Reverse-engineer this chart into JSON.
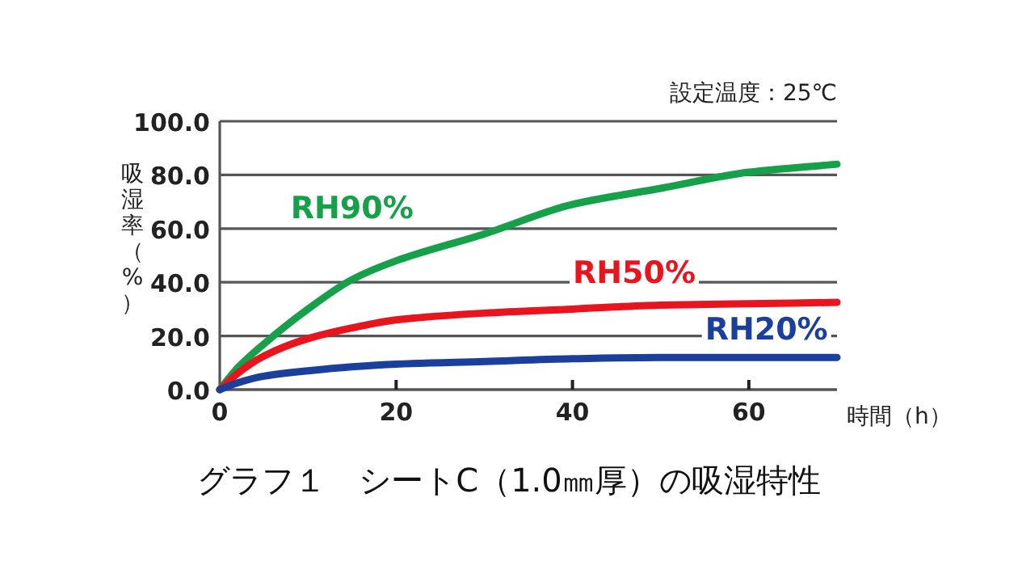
{
  "chart_data": {
    "type": "line",
    "title": "グラフ１　シートC（1.0㎜厚）の吸湿特性",
    "xlabel": "時間（h）",
    "ylabel": "吸湿率（%）",
    "annotations": [
      "設定温度：25℃"
    ],
    "x": [
      0,
      2,
      5,
      10,
      15,
      20,
      30,
      40,
      50,
      60,
      70
    ],
    "series": [
      {
        "name": "RH90%",
        "color": "#16a04a",
        "values": [
          0,
          8,
          17,
          30,
          41,
          48,
          58,
          69,
          75,
          81,
          84
        ]
      },
      {
        "name": "RH50%",
        "color": "#e8141e",
        "values": [
          0,
          6,
          12.5,
          19,
          23,
          26,
          28.5,
          30,
          31.5,
          32,
          32.5
        ]
      },
      {
        "name": "RH20%",
        "color": "#1a3f9c",
        "values": [
          0,
          2.5,
          5,
          7,
          8.5,
          9.5,
          10.5,
          11.5,
          12,
          12,
          12
        ]
      }
    ],
    "xlim": [
      0,
      70
    ],
    "ylim": [
      0,
      100
    ],
    "xticks": [
      0,
      20,
      40,
      60
    ],
    "yticks": [
      {
        "value": 0,
        "label": "0.0"
      },
      {
        "value": 20,
        "label": "20.0"
      },
      {
        "value": 40,
        "label": "40.0"
      },
      {
        "value": 60,
        "label": "60.0"
      },
      {
        "value": 80,
        "label": "80.0"
      },
      {
        "value": 100,
        "label": "100.0"
      }
    ],
    "grid": "y",
    "marker": "none",
    "line_style": "solid"
  }
}
